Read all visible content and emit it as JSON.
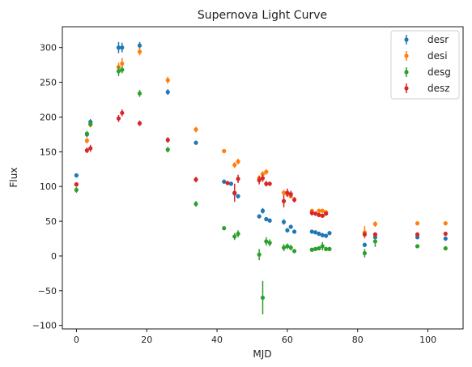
{
  "chart_data": {
    "type": "scatter",
    "title": "Supernova Light Curve",
    "xlabel": "MJD",
    "ylabel": "Flux",
    "xlim": [
      -4,
      110
    ],
    "ylim": [
      -105,
      330
    ],
    "xticks": [
      0,
      20,
      40,
      60,
      80,
      100
    ],
    "yticks": [
      -100,
      -50,
      0,
      50,
      100,
      150,
      200,
      250,
      300
    ],
    "grid": false,
    "legend_position": "top-right",
    "series": [
      {
        "name": "desr",
        "color": "#1f77b4",
        "points": [
          {
            "x": 0,
            "y": 116,
            "err": 3
          },
          {
            "x": 3,
            "y": 175,
            "err": 4
          },
          {
            "x": 4,
            "y": 193,
            "err": 4
          },
          {
            "x": 12,
            "y": 300,
            "err": 8
          },
          {
            "x": 13,
            "y": 300,
            "err": 7
          },
          {
            "x": 18,
            "y": 303,
            "err": 5
          },
          {
            "x": 26,
            "y": 236,
            "err": 4
          },
          {
            "x": 34,
            "y": 163,
            "err": 3
          },
          {
            "x": 42,
            "y": 107,
            "err": 3
          },
          {
            "x": 44,
            "y": 104,
            "err": 3
          },
          {
            "x": 45,
            "y": 90,
            "err": 3
          },
          {
            "x": 46,
            "y": 86,
            "err": 3
          },
          {
            "x": 52,
            "y": 57,
            "err": 3
          },
          {
            "x": 53,
            "y": 65,
            "err": 4
          },
          {
            "x": 54,
            "y": 53,
            "err": 3
          },
          {
            "x": 55,
            "y": 51,
            "err": 3
          },
          {
            "x": 59,
            "y": 49,
            "err": 4
          },
          {
            "x": 60,
            "y": 37,
            "err": 3
          },
          {
            "x": 61,
            "y": 42,
            "err": 3
          },
          {
            "x": 62,
            "y": 35,
            "err": 3
          },
          {
            "x": 67,
            "y": 35,
            "err": 3
          },
          {
            "x": 68,
            "y": 34,
            "err": 3
          },
          {
            "x": 69,
            "y": 32,
            "err": 3
          },
          {
            "x": 70,
            "y": 30,
            "err": 3
          },
          {
            "x": 71,
            "y": 29,
            "err": 3
          },
          {
            "x": 72,
            "y": 33,
            "err": 3
          },
          {
            "x": 82,
            "y": 16,
            "err": 3
          },
          {
            "x": 85,
            "y": 27,
            "err": 3
          },
          {
            "x": 97,
            "y": 27,
            "err": 3
          },
          {
            "x": 105,
            "y": 25,
            "err": 3
          }
        ]
      },
      {
        "name": "desi",
        "color": "#ff7f0e",
        "points": [
          {
            "x": 0,
            "y": 103,
            "err": 3
          },
          {
            "x": 3,
            "y": 166,
            "err": 4
          },
          {
            "x": 4,
            "y": 189,
            "err": 4
          },
          {
            "x": 12,
            "y": 272,
            "err": 6
          },
          {
            "x": 13,
            "y": 277,
            "err": 8
          },
          {
            "x": 18,
            "y": 294,
            "err": 5
          },
          {
            "x": 26,
            "y": 253,
            "err": 5
          },
          {
            "x": 34,
            "y": 182,
            "err": 4
          },
          {
            "x": 42,
            "y": 151,
            "err": 3
          },
          {
            "x": 45,
            "y": 131,
            "err": 4
          },
          {
            "x": 46,
            "y": 136,
            "err": 4
          },
          {
            "x": 52,
            "y": 112,
            "err": 4
          },
          {
            "x": 53,
            "y": 118,
            "err": 4
          },
          {
            "x": 54,
            "y": 121,
            "err": 4
          },
          {
            "x": 59,
            "y": 91,
            "err": 4
          },
          {
            "x": 60,
            "y": 89,
            "err": 3
          },
          {
            "x": 61,
            "y": 86,
            "err": 3
          },
          {
            "x": 67,
            "y": 65,
            "err": 3
          },
          {
            "x": 69,
            "y": 65,
            "err": 3
          },
          {
            "x": 70,
            "y": 65,
            "err": 3
          },
          {
            "x": 71,
            "y": 63,
            "err": 3
          },
          {
            "x": 82,
            "y": 34,
            "err": 9
          },
          {
            "x": 85,
            "y": 46,
            "err": 4
          },
          {
            "x": 97,
            "y": 47,
            "err": 3
          },
          {
            "x": 105,
            "y": 47,
            "err": 3
          }
        ]
      },
      {
        "name": "desg",
        "color": "#2ca02c",
        "points": [
          {
            "x": 0,
            "y": 95,
            "err": 4
          },
          {
            "x": 3,
            "y": 176,
            "err": 4
          },
          {
            "x": 4,
            "y": 190,
            "err": 4
          },
          {
            "x": 12,
            "y": 266,
            "err": 7
          },
          {
            "x": 13,
            "y": 268,
            "err": 5
          },
          {
            "x": 18,
            "y": 234,
            "err": 5
          },
          {
            "x": 26,
            "y": 153,
            "err": 4
          },
          {
            "x": 34,
            "y": 75,
            "err": 4
          },
          {
            "x": 42,
            "y": 40,
            "err": 3
          },
          {
            "x": 45,
            "y": 28,
            "err": 5
          },
          {
            "x": 46,
            "y": 32,
            "err": 5
          },
          {
            "x": 52,
            "y": 2,
            "err": 8
          },
          {
            "x": 53,
            "y": -60,
            "err": 24
          },
          {
            "x": 54,
            "y": 21,
            "err": 6
          },
          {
            "x": 55,
            "y": 19,
            "err": 5
          },
          {
            "x": 59,
            "y": 12,
            "err": 5
          },
          {
            "x": 60,
            "y": 14,
            "err": 4
          },
          {
            "x": 61,
            "y": 12,
            "err": 4
          },
          {
            "x": 62,
            "y": 7,
            "err": 3
          },
          {
            "x": 67,
            "y": 9,
            "err": 3
          },
          {
            "x": 68,
            "y": 10,
            "err": 3
          },
          {
            "x": 69,
            "y": 11,
            "err": 3
          },
          {
            "x": 70,
            "y": 14,
            "err": 6
          },
          {
            "x": 71,
            "y": 10,
            "err": 3
          },
          {
            "x": 72,
            "y": 10,
            "err": 3
          },
          {
            "x": 82,
            "y": 4,
            "err": 6
          },
          {
            "x": 85,
            "y": 21,
            "err": 8
          },
          {
            "x": 97,
            "y": 14,
            "err": 3
          },
          {
            "x": 105,
            "y": 11,
            "err": 3
          }
        ]
      },
      {
        "name": "desz",
        "color": "#d62728",
        "points": [
          {
            "x": 0,
            "y": 103,
            "err": 3
          },
          {
            "x": 3,
            "y": 152,
            "err": 4
          },
          {
            "x": 4,
            "y": 155,
            "err": 5
          },
          {
            "x": 12,
            "y": 198,
            "err": 5
          },
          {
            "x": 13,
            "y": 206,
            "err": 5
          },
          {
            "x": 18,
            "y": 191,
            "err": 4
          },
          {
            "x": 26,
            "y": 167,
            "err": 4
          },
          {
            "x": 34,
            "y": 110,
            "err": 4
          },
          {
            "x": 43,
            "y": 105,
            "err": 3
          },
          {
            "x": 45,
            "y": 91,
            "err": 13
          },
          {
            "x": 46,
            "y": 111,
            "err": 6
          },
          {
            "x": 52,
            "y": 109,
            "err": 6
          },
          {
            "x": 53,
            "y": 112,
            "err": 5
          },
          {
            "x": 54,
            "y": 104,
            "err": 4
          },
          {
            "x": 55,
            "y": 104,
            "err": 3
          },
          {
            "x": 59,
            "y": 79,
            "err": 9
          },
          {
            "x": 60,
            "y": 91,
            "err": 6
          },
          {
            "x": 61,
            "y": 89,
            "err": 5
          },
          {
            "x": 62,
            "y": 81,
            "err": 4
          },
          {
            "x": 67,
            "y": 62,
            "err": 4
          },
          {
            "x": 68,
            "y": 61,
            "err": 3
          },
          {
            "x": 69,
            "y": 59,
            "err": 3
          },
          {
            "x": 70,
            "y": 58,
            "err": 3
          },
          {
            "x": 71,
            "y": 61,
            "err": 3
          },
          {
            "x": 82,
            "y": 31,
            "err": 4
          },
          {
            "x": 85,
            "y": 31,
            "err": 3
          },
          {
            "x": 97,
            "y": 31,
            "err": 3
          },
          {
            "x": 105,
            "y": 32,
            "err": 3
          }
        ]
      }
    ]
  }
}
